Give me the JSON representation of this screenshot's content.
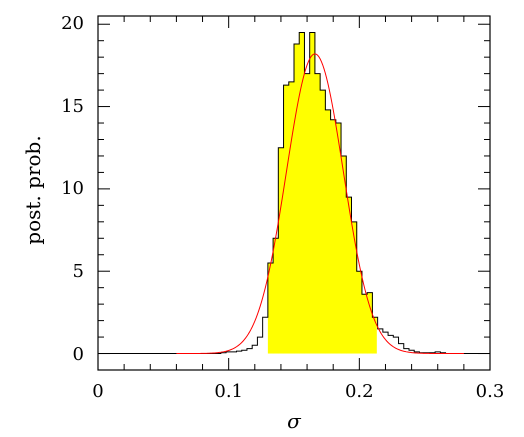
{
  "chart_data": {
    "type": "histogram",
    "title": "",
    "xlabel": "σ",
    "ylabel": "post. prob.",
    "xlim": [
      0,
      0.3
    ],
    "ylim": [
      -1,
      20.5
    ],
    "xticks": [
      0,
      0.1,
      0.2,
      0.3
    ],
    "xtick_labels": [
      "0",
      "0.1",
      "0.2",
      "0.3"
    ],
    "yticks": [
      0,
      5,
      10,
      15,
      20
    ],
    "ytick_labels": [
      "0",
      "5",
      "10",
      "15",
      "20"
    ],
    "grid": false,
    "highlight_range": [
      0.13,
      0.213
    ],
    "colors": {
      "histogram_fill": "#ffff00",
      "histogram_line": "#000000",
      "fit_curve": "#ff0000",
      "axes": "#000000"
    },
    "histogram": {
      "bin_width": 0.004,
      "bin_starts": [
        0.094,
        0.098,
        0.102,
        0.106,
        0.11,
        0.114,
        0.118,
        0.122,
        0.126,
        0.13,
        0.134,
        0.138,
        0.142,
        0.146,
        0.15,
        0.154,
        0.158,
        0.162,
        0.166,
        0.17,
        0.174,
        0.178,
        0.182,
        0.186,
        0.19,
        0.194,
        0.198,
        0.202,
        0.206,
        0.21,
        0.214,
        0.218,
        0.222,
        0.226,
        0.23,
        0.234,
        0.238,
        0.242,
        0.246,
        0.25,
        0.254,
        0.258,
        0.262,
        0.266
      ],
      "values": [
        0.05,
        0.1,
        0.1,
        0.15,
        0.2,
        0.3,
        0.5,
        1.0,
        2.2,
        5.5,
        7.0,
        12.5,
        16.3,
        16.5,
        18.8,
        19.5,
        17.0,
        19.5,
        17.0,
        16.0,
        14.8,
        14.2,
        14.0,
        12.0,
        9.5,
        8.0,
        5.0,
        3.6,
        3.7,
        2.2,
        1.5,
        1.3,
        1.1,
        1.0,
        0.6,
        0.3,
        0.2,
        0.1,
        0.05,
        0.05,
        0.05,
        0.1,
        0.05,
        0.0
      ]
    },
    "fit_curve": {
      "type": "gaussian",
      "mean": 0.166,
      "sigma": 0.0218,
      "peak": 18.2,
      "x_range": [
        0.06,
        0.28
      ]
    }
  }
}
